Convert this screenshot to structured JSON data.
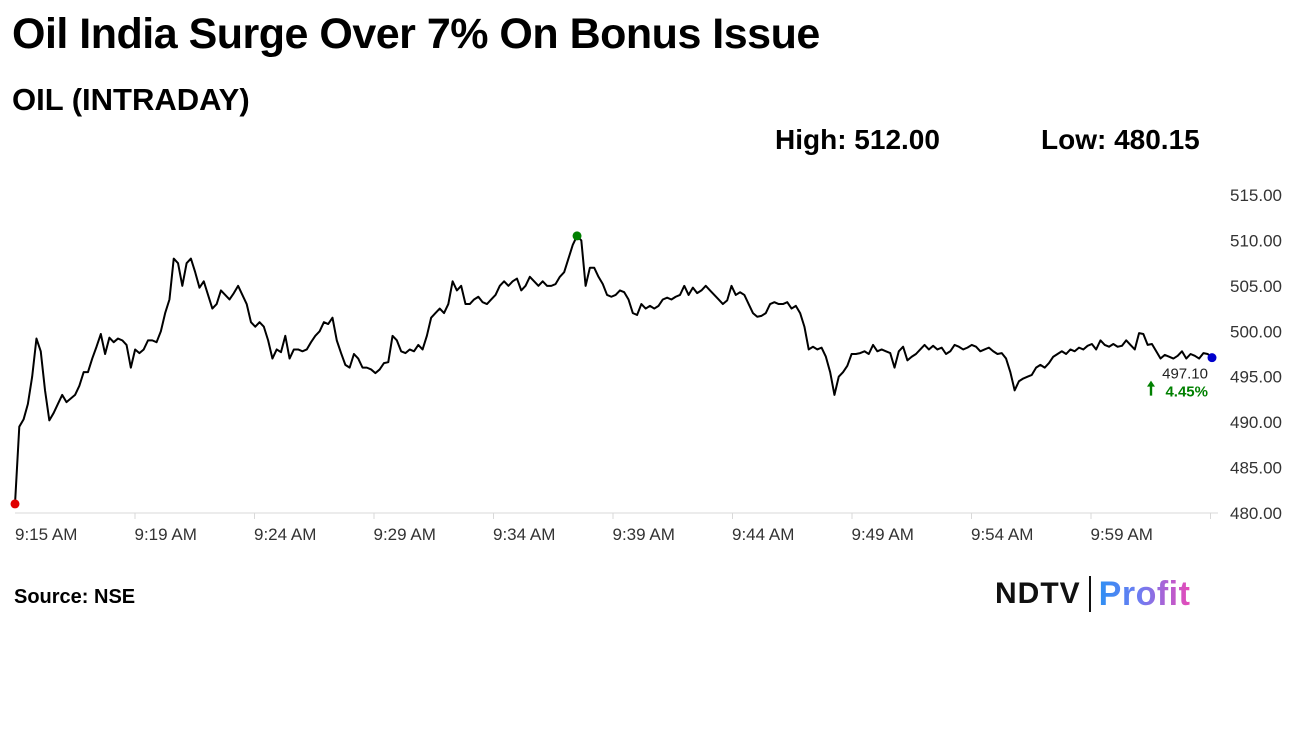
{
  "headline": "Oil India Surge Over 7% On Bonus Issue",
  "subtitle": "OIL (INTRADAY)",
  "stats": {
    "high": "High: 512.00",
    "low": "Low: 480.15"
  },
  "source": "Source: NSE",
  "logo": {
    "left": "NDTV",
    "right": "Profit"
  },
  "colors": {
    "line": "#000000",
    "open_marker": "#e00000",
    "peak_marker": "#008000",
    "last_marker": "#0000cc",
    "change_positive": "#008000",
    "axis": "#d9d9d9"
  },
  "chart_data": {
    "type": "line",
    "x_tick_labels": [
      "9:15 AM",
      "9:19 AM",
      "9:24 AM",
      "9:29 AM",
      "9:34 AM",
      "9:39 AM",
      "9:44 AM",
      "9:49 AM",
      "9:54 AM",
      "9:59 AM"
    ],
    "y_tick_labels": [
      "515.00",
      "510.00",
      "505.00",
      "500.00",
      "495.00",
      "490.00",
      "485.00",
      "480.00"
    ],
    "ylim": [
      480,
      515
    ],
    "grid": false,
    "last_price_label": "497.10",
    "change_label": "4.45%",
    "change_icon": "arrow-up-icon",
    "series": [
      {
        "values": [
          481.0,
          489.5,
          490.3,
          492.0,
          495.0,
          499.2,
          497.8,
          493.5,
          490.2,
          491.0,
          492.0,
          493.0,
          492.2,
          492.6,
          493.0,
          494.0,
          495.5,
          495.5,
          497.0,
          498.3,
          499.7,
          497.5,
          499.3,
          498.8,
          499.2,
          499.0,
          498.5,
          496.0,
          498.0,
          497.6,
          498.0,
          499.0,
          499.0,
          498.8,
          500.0,
          502.0,
          503.5,
          508.0,
          507.5,
          505.0,
          507.5,
          508.0,
          506.5,
          504.8,
          505.5,
          504.0,
          502.5,
          503.0,
          504.5,
          504.0,
          503.5,
          504.2,
          505.0,
          504.0,
          503.0,
          501.0,
          500.5,
          501.0,
          500.5,
          499.0,
          497.0,
          498.0,
          497.7,
          499.5,
          497.0,
          498.0,
          498.0,
          497.8,
          498.0,
          498.8,
          499.5,
          500.0,
          501.0,
          500.8,
          501.5,
          499.0,
          497.6,
          496.3,
          496.0,
          497.5,
          497.0,
          496.0,
          496.0,
          495.8,
          495.4,
          495.8,
          496.5,
          496.6,
          499.5,
          499.0,
          497.8,
          497.6,
          498.0,
          497.8,
          498.5,
          498.0,
          499.5,
          501.5,
          502.0,
          502.5,
          502.0,
          503.0,
          505.5,
          504.5,
          505.0,
          503.0,
          503.0,
          503.5,
          503.8,
          503.2,
          503.0,
          503.5,
          504.0,
          505.0,
          505.5,
          505.0,
          505.5,
          505.8,
          504.5,
          505.0,
          506.0,
          505.5,
          505.0,
          505.5,
          505.0,
          505.0,
          505.2,
          506.0,
          506.5,
          508.0,
          509.5,
          510.5,
          510.0,
          505.0,
          507.0,
          507.0,
          506.0,
          505.2,
          504.0,
          503.8,
          504.0,
          504.5,
          504.3,
          503.5,
          502.0,
          501.8,
          503.0,
          502.5,
          502.8,
          502.5,
          502.8,
          503.5,
          503.7,
          503.5,
          503.8,
          504.0,
          505.0,
          504.0,
          504.8,
          504.2,
          504.5,
          505.0,
          504.5,
          504.0,
          503.5,
          503.0,
          503.4,
          505.0,
          504.0,
          504.3,
          504.0,
          503.0,
          502.0,
          501.6,
          501.7,
          502.0,
          503.0,
          503.2,
          503.0,
          503.0,
          503.2,
          502.5,
          502.8,
          502.0,
          500.5,
          498.0,
          498.3,
          498.0,
          498.2,
          497.2,
          495.5,
          493.0,
          495.0,
          495.5,
          496.2,
          497.5,
          497.5,
          497.6,
          497.8,
          497.5,
          498.5,
          497.8,
          498.0,
          497.8,
          497.6,
          496.0,
          497.8,
          498.3,
          496.8,
          497.2,
          497.5,
          498.0,
          498.5,
          498.0,
          498.4,
          498.0,
          498.2,
          497.5,
          497.8,
          498.5,
          498.3,
          498.0,
          498.2,
          498.5,
          498.3,
          497.8,
          498.0,
          498.2,
          497.8,
          497.5,
          497.6,
          497.0,
          495.5,
          493.5,
          494.5,
          494.8,
          495.0,
          495.2,
          496.0,
          496.3,
          496.0,
          496.5,
          497.2,
          497.5,
          497.8,
          497.5,
          498.0,
          497.8,
          498.2,
          498.0,
          498.4,
          498.6,
          498.0,
          499.0,
          498.5,
          498.3,
          498.6,
          498.3,
          498.4,
          499.0,
          498.5,
          498.0,
          499.8,
          499.7,
          498.5,
          498.6,
          497.8,
          497.0,
          497.4,
          497.2,
          497.0,
          497.3,
          497.8,
          497.0,
          497.5,
          497.3,
          497.0,
          497.6,
          497.5,
          497.1
        ]
      }
    ]
  }
}
